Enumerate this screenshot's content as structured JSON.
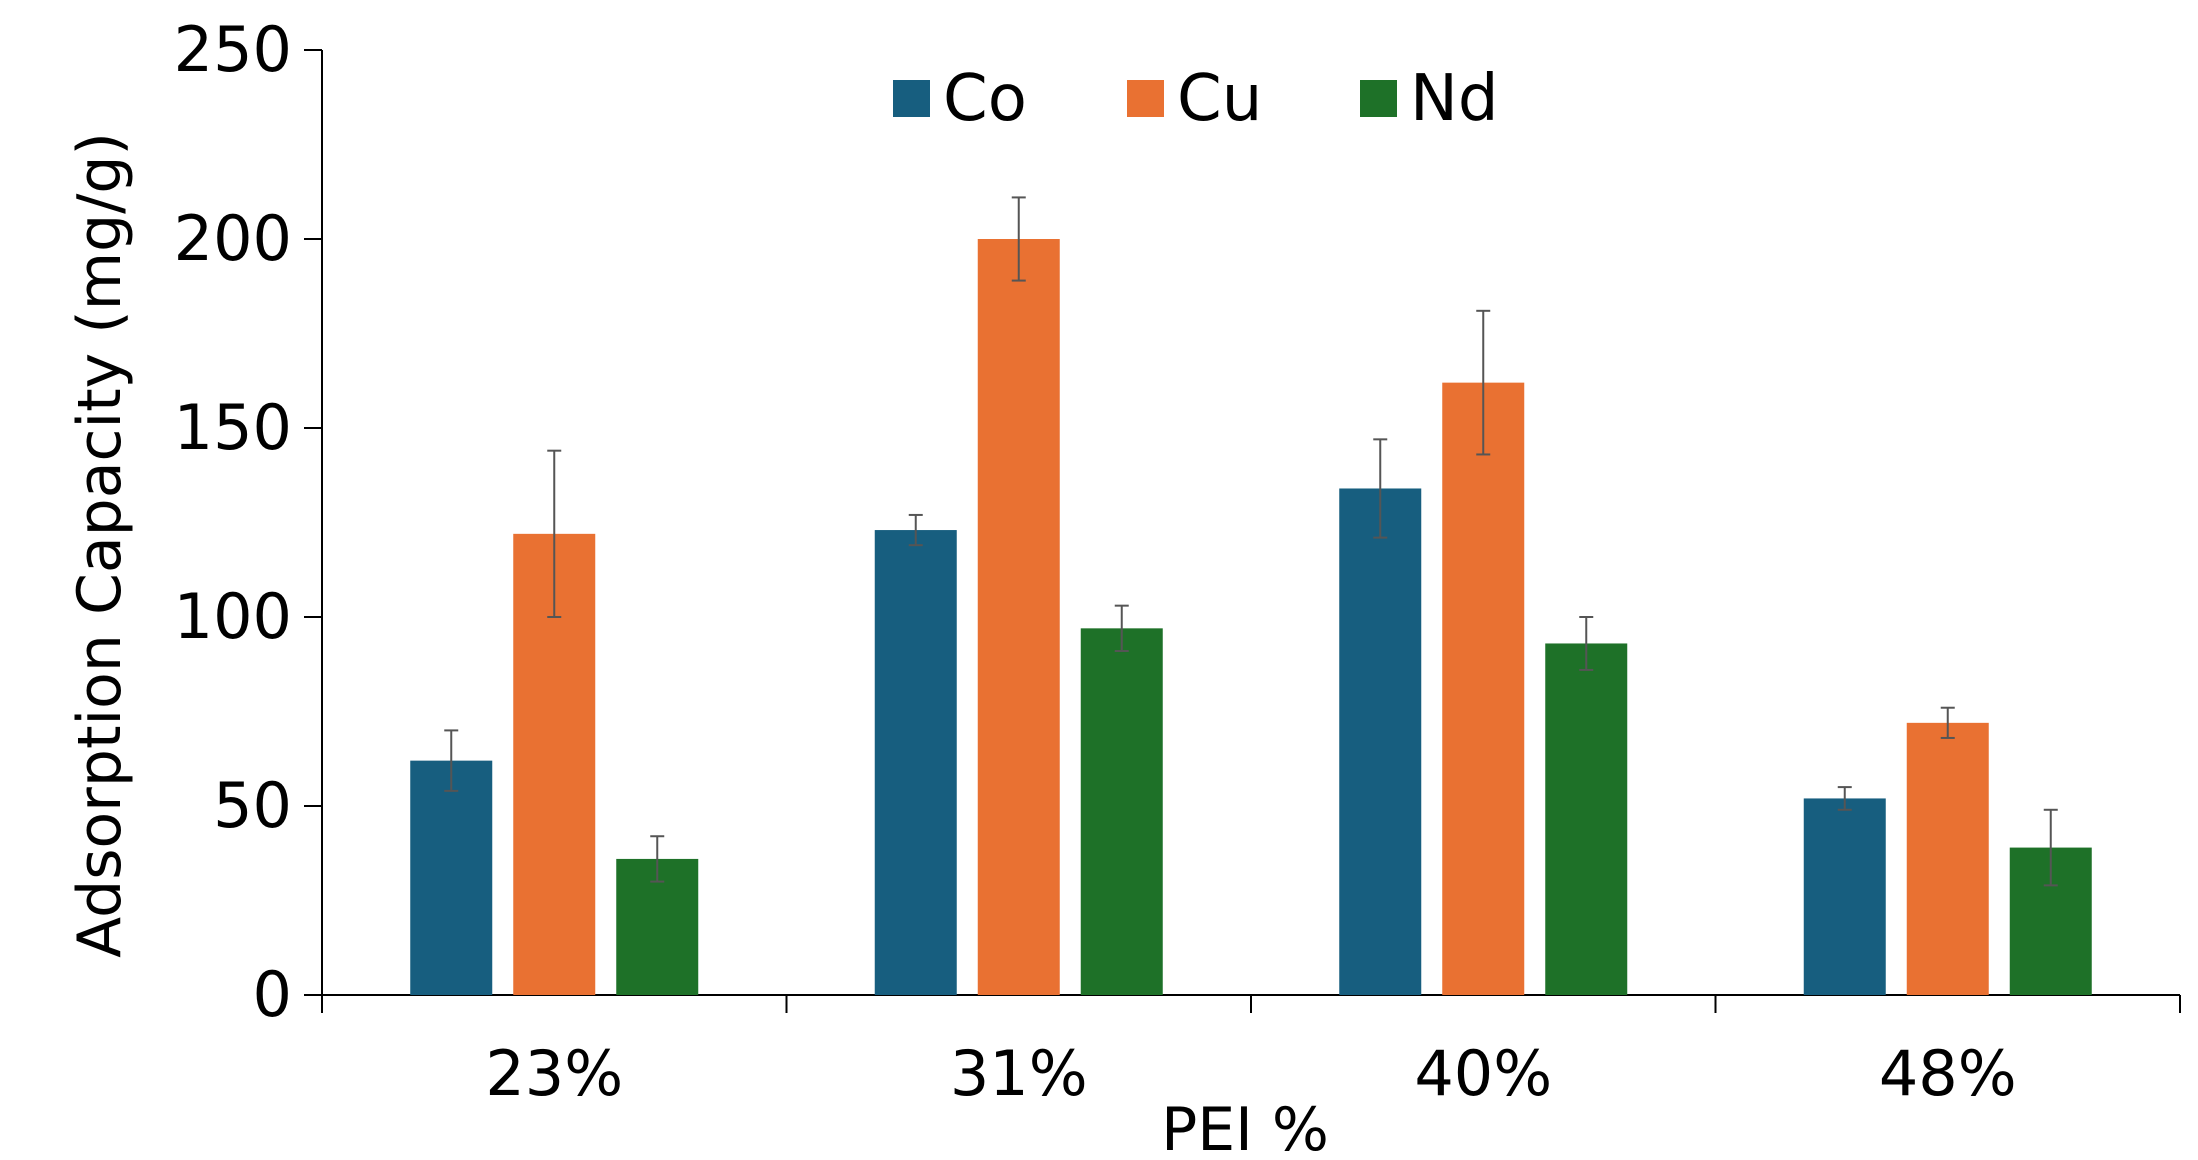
{
  "chart_data": {
    "type": "bar",
    "xlabel": "PEI %",
    "ylabel": "Adsorption Capacity (mg/g)",
    "categories": [
      "23%",
      "31%",
      "40%",
      "48%"
    ],
    "ylim": [
      0,
      250
    ],
    "yticks": [
      0,
      50,
      100,
      150,
      200,
      250
    ],
    "grid": false,
    "legend_position": "top-center",
    "series": [
      {
        "name": "Co",
        "color": "#175E7F",
        "values": [
          62,
          123,
          134,
          52
        ],
        "errors": [
          8,
          4,
          13,
          3
        ]
      },
      {
        "name": "Cu",
        "color": "#E97132",
        "values": [
          122,
          200,
          162,
          72
        ],
        "errors": [
          22,
          11,
          19,
          4
        ]
      },
      {
        "name": "Nd",
        "color": "#1E7128",
        "values": [
          36,
          97,
          93,
          39
        ],
        "errors": [
          6,
          6,
          7,
          10
        ]
      }
    ]
  }
}
